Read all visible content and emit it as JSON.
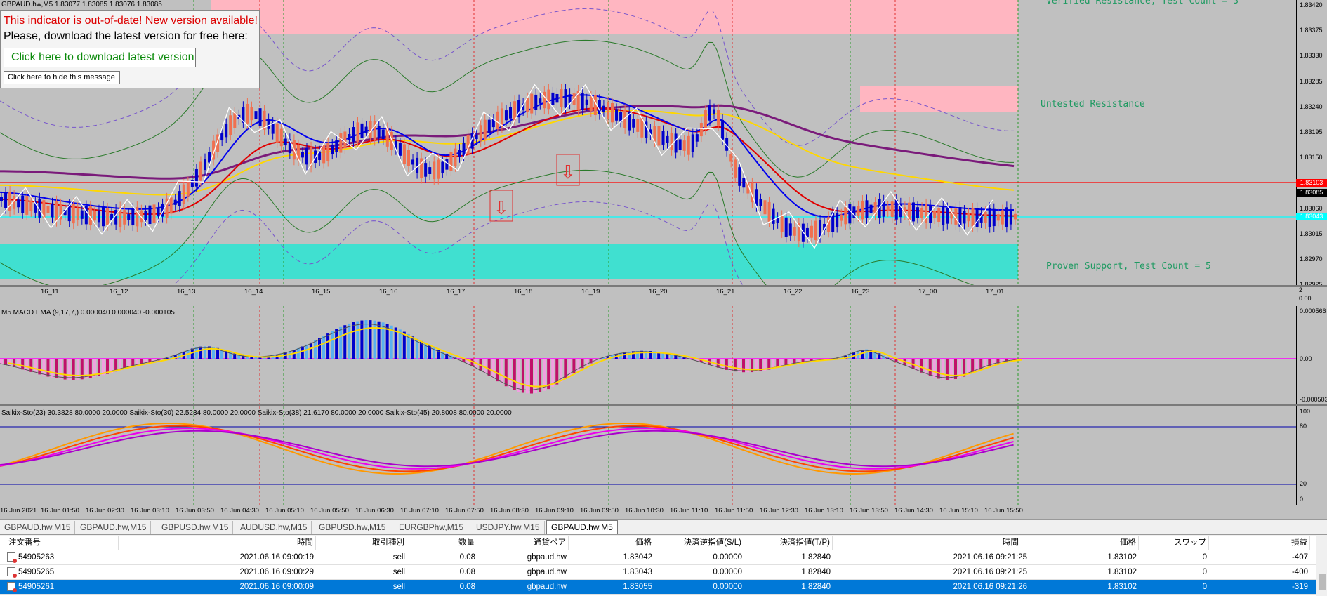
{
  "chart": {
    "title": "GBPAUD.hw,M5  1.83077 1.83085 1.83076 1.83085",
    "current_price_tag": "1.83085",
    "red_line_tag": "1.83103",
    "cyan_line_tag": "1.83043",
    "price_scale": [
      "1.83420",
      "1.83375",
      "1.83330",
      "1.83285",
      "1.83240",
      "1.83195",
      "1.83150",
      "1.83105",
      "1.83060",
      "1.83015",
      "1.82970",
      "1.82925"
    ],
    "zone_labels": {
      "verified": "Verified Resistance, Test Count = 3",
      "untested": "Untested Resistance",
      "proven": "Proven Support, Test Count = 5"
    },
    "sub_axis_labels": [
      "16_11",
      "16_12",
      "16_13",
      "16_14",
      "16_15",
      "16_16",
      "16_17",
      "16_18",
      "16_19",
      "16_20",
      "16_21",
      "16_22",
      "16_23",
      "17_00",
      "17_01"
    ],
    "sep_scale": [
      "2",
      "0.00"
    ],
    "colors": {
      "bull": "#0000cc",
      "bear": "#f07050",
      "support_zone": "#40e0d0",
      "resistance_zone": "#ffb6c1",
      "hline_red": "#ff0000",
      "hline_cyan": "#00ffff"
    }
  },
  "notice": {
    "line1": "This indicator is out-of-date! New version available!",
    "line2": "Please, download the latest version for free here:",
    "download_button": "Click here to download latest version",
    "hide_button": "Click here to hide this message"
  },
  "macd": {
    "label": "M5 MACD EMA (9,17,7,) 0.000040 0.000040 -0.000105",
    "scale": [
      "0.000566",
      "0.00",
      "-0.000503"
    ]
  },
  "stoch": {
    "label": "Saikix-Sto(23) 30.3828 80.0000 20.0000   Saikix-Sto(30) 22.5234 80.0000 20.0000   Saikix-Sto(38) 21.6170 80.0000 20.0000   Saikix-Sto(45) 20.8008 80.0000 20.0000",
    "scale": [
      "100",
      "80",
      "20",
      "0"
    ]
  },
  "time_axis": [
    "16 Jun 2021",
    "16 Jun 01:50",
    "16 Jun 02:30",
    "16 Jun 03:10",
    "16 Jun 03:50",
    "16 Jun 04:30",
    "16 Jun 05:10",
    "16 Jun 05:50",
    "16 Jun 06:30",
    "16 Jun 07:10",
    "16 Jun 07:50",
    "16 Jun 08:30",
    "16 Jun 09:10",
    "16 Jun 09:50",
    "16 Jun 10:30",
    "16 Jun 11:10",
    "16 Jun 11:50",
    "16 Jun 12:30",
    "16 Jun 13:10",
    "16 Jun 13:50",
    "16 Jun 14:30",
    "16 Jun 15:10",
    "16 Jun 15:50"
  ],
  "tabs": [
    "GBPAUD.hw,M15",
    "GBPAUD.hw,M15",
    "GBPUSD.hw,M15",
    "AUDUSD.hw,M15",
    "GBPUSD.hw,M15",
    "EURGBPhw,M15",
    "USDJPY.hw,M15",
    "GBPAUD.hw,M5"
  ],
  "orders": {
    "headers": [
      "注文番号",
      "時間",
      "取引種別",
      "数量",
      "通貨ペア",
      "価格",
      "決済逆指値(S/L)",
      "決済指値(T/P)",
      "時間",
      "価格",
      "スワップ",
      "損益"
    ],
    "rows": [
      [
        "54905263",
        "2021.06.16 09:00:19",
        "sell",
        "0.08",
        "gbpaud.hw",
        "1.83042",
        "0.00000",
        "1.82840",
        "2021.06.16 09:21:25",
        "1.83102",
        "0",
        "-407"
      ],
      [
        "54905265",
        "2021.06.16 09:00:29",
        "sell",
        "0.08",
        "gbpaud.hw",
        "1.83043",
        "0.00000",
        "1.82840",
        "2021.06.16 09:21:25",
        "1.83102",
        "0",
        "-400"
      ],
      [
        "54905261",
        "2021.06.16 09:00:09",
        "sell",
        "0.08",
        "gbpaud.hw",
        "1.83055",
        "0.00000",
        "1.82840",
        "2021.06.16 09:21:26",
        "1.83102",
        "0",
        "-319"
      ]
    ]
  }
}
